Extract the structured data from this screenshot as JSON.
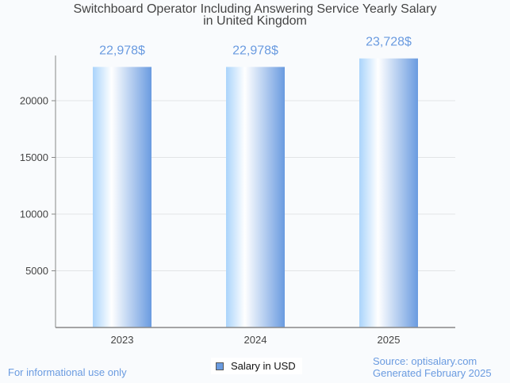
{
  "chart_data": {
    "type": "bar",
    "title_lines": [
      "Switchboard Operator Including Answering Service Yearly Salary",
      "in United Kingdom"
    ],
    "categories": [
      "2023",
      "2024",
      "2025"
    ],
    "series": [
      {
        "name": "Salary in USD",
        "values": [
          22978,
          22978,
          23728
        ]
      }
    ],
    "data_labels": [
      "22,978$",
      "22,978$",
      "23,728$"
    ],
    "xlabel": "",
    "ylabel": "",
    "ylim": [
      0,
      24500
    ],
    "yticks": [
      5000,
      10000,
      15000,
      20000
    ],
    "ytick_labels": [
      "5000",
      "10000",
      "15000",
      "20000"
    ],
    "grid": true,
    "legend_position": "bottom-center",
    "colors": {
      "bar_light": "#aad4fb",
      "bar_mid": "#ffffff",
      "bar_dark": "#6a9be0",
      "label": "#6a9be0"
    }
  },
  "footer": {
    "left": "For informational use only",
    "source": "Source: optisalary.com",
    "generated": "Generated February 2025"
  }
}
